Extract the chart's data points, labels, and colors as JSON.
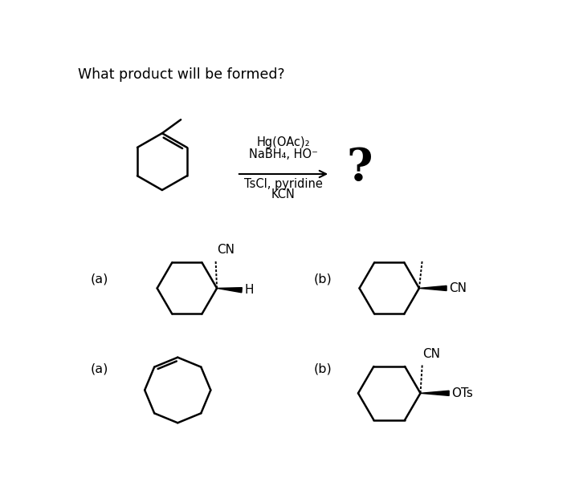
{
  "title": "What product will be formed?",
  "background": "#ffffff",
  "text_color": "#000000",
  "reagents_line1": "Hg(OAc)₂",
  "reagents_line2": "NaBH₄, HO⁻",
  "reagents_line3": "TsCl, pyridine",
  "reagents_line4": "KCN",
  "label_a1": "(a)",
  "label_b1": "(b)",
  "label_a2": "(a)",
  "label_b2": "(b)"
}
